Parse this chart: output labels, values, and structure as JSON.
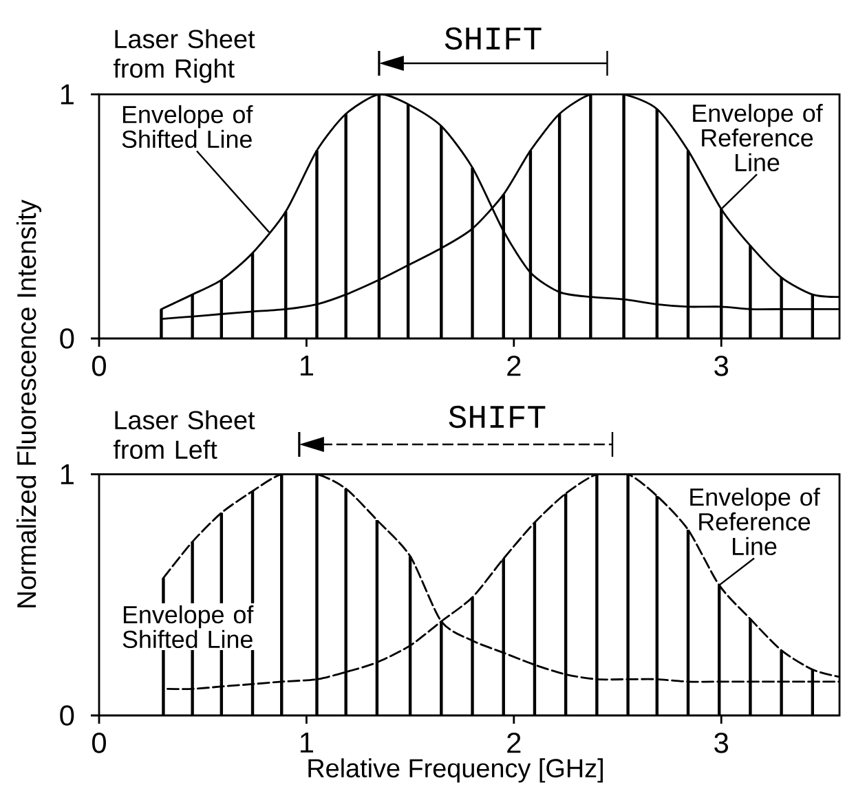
{
  "chart_data": [
    {
      "type": "line",
      "title": "Laser Sheet from Right",
      "ylabel": "Normalized Fluorescence Intensity",
      "annotations": [
        "SHIFT"
      ],
      "xlim": [
        0,
        3.57
      ],
      "ylim": [
        0,
        1
      ],
      "xticks": [
        0,
        1,
        2,
        3
      ],
      "yticks": [
        0,
        1
      ],
      "series": [
        {
          "type": "bar",
          "color": "#000000",
          "x": [
            0.3,
            0.45,
            0.59,
            0.74,
            0.9,
            1.05,
            1.19,
            1.35,
            1.49,
            1.65,
            1.8,
            1.95,
            2.08,
            2.22,
            2.37,
            2.53,
            2.69,
            2.84,
            3.0,
            3.14,
            3.29,
            3.44
          ],
          "values": [
            0.12,
            0.18,
            0.24,
            0.35,
            0.52,
            0.77,
            0.92,
            1.0,
            0.96,
            0.87,
            0.7,
            0.59,
            0.77,
            0.92,
            1.0,
            1.0,
            0.94,
            0.77,
            0.53,
            0.38,
            0.25,
            0.18
          ]
        },
        {
          "name": "Envelope of Shifted Line",
          "color": "#000000",
          "line_style": "solid",
          "x": [
            0.3,
            0.45,
            0.59,
            0.74,
            0.9,
            1.05,
            1.19,
            1.35,
            1.49,
            1.65,
            1.8,
            1.95,
            2.08,
            2.22,
            2.37,
            2.53,
            2.69,
            2.84,
            3.0,
            3.14,
            3.29,
            3.44,
            3.57
          ],
          "values": [
            0.12,
            0.18,
            0.24,
            0.35,
            0.52,
            0.77,
            0.92,
            1.0,
            0.96,
            0.87,
            0.7,
            0.44,
            0.27,
            0.19,
            0.17,
            0.16,
            0.14,
            0.13,
            0.13,
            0.12,
            0.12,
            0.12,
            0.12
          ]
        },
        {
          "name": "Envelope of Reference Line",
          "color": "#000000",
          "line_style": "solid",
          "x": [
            0.3,
            0.45,
            0.59,
            0.74,
            0.9,
            1.05,
            1.19,
            1.35,
            1.49,
            1.65,
            1.8,
            1.95,
            2.08,
            2.22,
            2.37,
            2.53,
            2.69,
            2.84,
            3.0,
            3.14,
            3.29,
            3.44,
            3.57
          ],
          "values": [
            0.08,
            0.09,
            0.1,
            0.11,
            0.12,
            0.14,
            0.18,
            0.24,
            0.3,
            0.37,
            0.45,
            0.59,
            0.77,
            0.92,
            1.0,
            1.0,
            0.94,
            0.77,
            0.53,
            0.38,
            0.25,
            0.18,
            0.17
          ]
        }
      ]
    },
    {
      "type": "line",
      "title": "Laser Sheet from Left",
      "xlabel": "Relative Frequency [GHz]",
      "annotations": [
        "SHIFT"
      ],
      "xlim": [
        0,
        3.57
      ],
      "ylim": [
        0,
        1
      ],
      "xticks": [
        0,
        1,
        2,
        3
      ],
      "yticks": [
        0,
        1
      ],
      "series": [
        {
          "type": "bar",
          "color": "#000000",
          "x": [
            0.31,
            0.45,
            0.59,
            0.74,
            0.88,
            1.05,
            1.19,
            1.34,
            1.5,
            1.65,
            1.8,
            1.95,
            2.1,
            2.25,
            2.4,
            2.55,
            2.69,
            2.84,
            2.99,
            3.14,
            3.29,
            3.44
          ],
          "values": [
            0.57,
            0.72,
            0.84,
            0.93,
            1.0,
            1.0,
            0.94,
            0.81,
            0.66,
            0.39,
            0.49,
            0.65,
            0.8,
            0.92,
            1.0,
            1.0,
            0.91,
            0.77,
            0.54,
            0.4,
            0.27,
            0.19
          ]
        },
        {
          "name": "Envelope of Shifted Line",
          "color": "#000000",
          "line_style": "dashed",
          "x": [
            0.31,
            0.45,
            0.59,
            0.74,
            0.88,
            1.05,
            1.19,
            1.34,
            1.5,
            1.65,
            1.8,
            1.95,
            2.1,
            2.25,
            2.4,
            2.55,
            2.69,
            2.84,
            2.99,
            3.14,
            3.29,
            3.44,
            3.57
          ],
          "values": [
            0.57,
            0.72,
            0.84,
            0.93,
            1.0,
            1.0,
            0.94,
            0.81,
            0.66,
            0.39,
            0.31,
            0.26,
            0.21,
            0.17,
            0.15,
            0.15,
            0.15,
            0.14,
            0.14,
            0.14,
            0.14,
            0.14,
            0.14
          ]
        },
        {
          "name": "Envelope of Reference Line",
          "color": "#000000",
          "line_style": "dashed",
          "x": [
            0.33,
            0.45,
            0.59,
            0.74,
            0.88,
            1.05,
            1.19,
            1.34,
            1.5,
            1.65,
            1.8,
            1.95,
            2.1,
            2.25,
            2.4,
            2.55,
            2.69,
            2.84,
            2.99,
            3.14,
            3.29,
            3.44,
            3.57
          ],
          "values": [
            0.11,
            0.11,
            0.12,
            0.13,
            0.14,
            0.15,
            0.18,
            0.22,
            0.29,
            0.39,
            0.49,
            0.65,
            0.8,
            0.92,
            1.0,
            1.0,
            0.91,
            0.77,
            0.54,
            0.4,
            0.27,
            0.19,
            0.16
          ]
        }
      ]
    }
  ]
}
